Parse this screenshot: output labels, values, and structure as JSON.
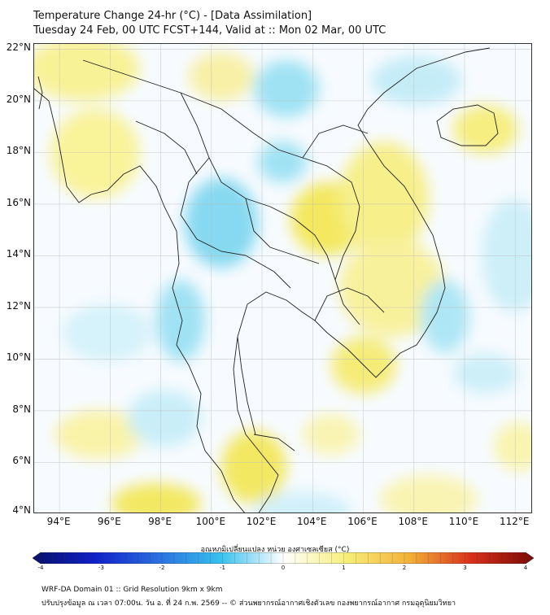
{
  "title": {
    "line1": "Temperature Change 24-hr (°C) - [Data Assimilation]",
    "line2": "Tuesday 24 Feb, 00 UTC FCST+144, Valid at :: Mon 02 Mar, 00 UTC"
  },
  "map": {
    "type": "filled-contour-map",
    "lon_range": [
      93,
      112.7
    ],
    "lat_range": [
      4,
      22.2
    ],
    "lat_ticks": [
      {
        "value": 22,
        "label": "22°N"
      },
      {
        "value": 20,
        "label": "20°N"
      },
      {
        "value": 18,
        "label": "18°N"
      },
      {
        "value": 16,
        "label": "16°N"
      },
      {
        "value": 14,
        "label": "14°N"
      },
      {
        "value": 12,
        "label": "12°N"
      },
      {
        "value": 10,
        "label": "10°N"
      },
      {
        "value": 8,
        "label": "8°N"
      },
      {
        "value": 6,
        "label": "6°N"
      },
      {
        "value": 4,
        "label": "4°N"
      }
    ],
    "lon_ticks": [
      {
        "value": 94,
        "label": "94°E"
      },
      {
        "value": 96,
        "label": "96°E"
      },
      {
        "value": 98,
        "label": "98°E"
      },
      {
        "value": 100,
        "label": "100°E"
      },
      {
        "value": 102,
        "label": "102°E"
      },
      {
        "value": 104,
        "label": "104°E"
      },
      {
        "value": 106,
        "label": "106°E"
      },
      {
        "value": 108,
        "label": "108°E"
      },
      {
        "value": 110,
        "label": "110°E"
      },
      {
        "value": 112,
        "label": "112°E"
      }
    ],
    "grid": true
  },
  "colorbar": {
    "title": "อุณหภูมิเปลี่ยนแปลง หน่วย องศาเซลเซียส (°C)",
    "min": -4,
    "max": 4,
    "ticks": [
      {
        "value": -4,
        "label": "-4"
      },
      {
        "value": -3,
        "label": "-3"
      },
      {
        "value": -2,
        "label": "-2"
      },
      {
        "value": -1,
        "label": "-1"
      },
      {
        "value": 0,
        "label": "0"
      },
      {
        "value": 1,
        "label": "1"
      },
      {
        "value": 2,
        "label": "2"
      },
      {
        "value": 3,
        "label": "3"
      },
      {
        "value": 4,
        "label": "4"
      }
    ],
    "colors": [
      "#08106b",
      "#1020c8",
      "#2a6fe0",
      "#36c0ee",
      "#ffffff",
      "#f7ef7a",
      "#f3b23a",
      "#d8301a",
      "#7a0a06"
    ]
  },
  "footer": {
    "line1": "WRF-DA Domain 01 :: Grid Resolution 9km x 9km",
    "line2": "ปรับปรุงข้อมูล ณ เวลา 07:00น. วัน อ. ที่ 24 ก.พ. 2569 -- © ส่วนพยากรณ์อากาศเชิงตัวเลข กองพยากรณ์อากาศ กรมอุตุนิยมวิทยา"
  }
}
